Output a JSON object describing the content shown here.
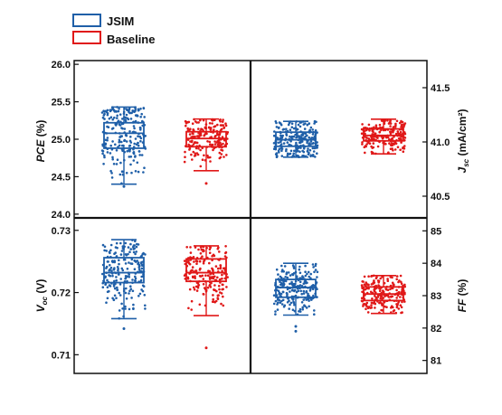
{
  "legend": [
    {
      "label": "JSIM",
      "color": "#1f5fa8"
    },
    {
      "label": "Baseline",
      "color": "#e01818"
    }
  ],
  "chart_data": [
    {
      "type": "box",
      "panel": "top-left",
      "ylabel_main": "PCE",
      "ylabel_sub": "",
      "ylabel_unit": " (%)",
      "ylim": [
        23.95,
        26.05
      ],
      "yticks": [
        {
          "value": 24.0,
          "label": "24.0"
        },
        {
          "value": 24.5,
          "label": "24.5"
        },
        {
          "value": 25.0,
          "label": "25.0"
        },
        {
          "value": 25.5,
          "label": "25.5"
        },
        {
          "value": 26.0,
          "label": "26.0"
        }
      ],
      "axis_side": "left",
      "series": [
        {
          "name": "JSIM",
          "min": 24.4,
          "q1": 24.88,
          "median": 25.08,
          "q3": 25.22,
          "max": 25.43,
          "n": 230,
          "outliers": [
            24.37
          ]
        },
        {
          "name": "Baseline",
          "min": 24.58,
          "q1": 24.9,
          "median": 25.01,
          "q3": 25.1,
          "max": 25.27,
          "n": 190,
          "outliers": [
            24.41
          ]
        }
      ]
    },
    {
      "type": "box",
      "panel": "top-right",
      "ylabel_main": "J",
      "ylabel_sub": "sc",
      "ylabel_unit": " (mA/cm²)",
      "ylim": [
        40.3,
        41.75
      ],
      "yticks": [
        {
          "value": 40.5,
          "label": "40.5"
        },
        {
          "value": 41.0,
          "label": "41.0"
        },
        {
          "value": 41.5,
          "label": "41.5"
        }
      ],
      "axis_side": "right",
      "series": [
        {
          "name": "JSIM",
          "min": 40.86,
          "q1": 40.96,
          "median": 41.02,
          "q3": 41.09,
          "max": 41.19,
          "n": 220,
          "outliers": []
        },
        {
          "name": "Baseline",
          "min": 40.89,
          "q1": 41.01,
          "median": 41.06,
          "q3": 41.12,
          "max": 41.21,
          "n": 200,
          "outliers": []
        }
      ]
    },
    {
      "type": "box",
      "panel": "bottom-left",
      "ylabel_main": "V",
      "ylabel_sub": "oc",
      "ylabel_unit": " (V)",
      "ylim": [
        0.707,
        0.732
      ],
      "yticks": [
        {
          "value": 0.71,
          "label": "0.71"
        },
        {
          "value": 0.72,
          "label": "0.72"
        },
        {
          "value": 0.73,
          "label": "0.73"
        }
      ],
      "axis_side": "left",
      "series": [
        {
          "name": "JSIM",
          "min": 0.7158,
          "q1": 0.7216,
          "median": 0.7232,
          "q3": 0.7256,
          "max": 0.7285,
          "n": 210,
          "outliers": [
            0.7142
          ]
        },
        {
          "name": "Baseline",
          "min": 0.7163,
          "q1": 0.7218,
          "median": 0.7232,
          "q3": 0.7254,
          "max": 0.7275,
          "n": 190,
          "outliers": [
            0.7111
          ]
        }
      ]
    },
    {
      "type": "box",
      "panel": "bottom-right",
      "ylabel_main": "FF",
      "ylabel_sub": "",
      "ylabel_unit": " (%)",
      "ylim": [
        80.6,
        85.4
      ],
      "yticks": [
        {
          "value": 81,
          "label": "81"
        },
        {
          "value": 82,
          "label": "82"
        },
        {
          "value": 83,
          "label": "83"
        },
        {
          "value": 84,
          "label": "84"
        },
        {
          "value": 85,
          "label": "85"
        }
      ],
      "axis_side": "right",
      "series": [
        {
          "name": "JSIM",
          "min": 82.4,
          "q1": 82.95,
          "median": 83.25,
          "q3": 83.5,
          "max": 84.0,
          "n": 220,
          "outliers": [
            81.9,
            82.05
          ]
        },
        {
          "name": "Baseline",
          "min": 82.45,
          "q1": 82.85,
          "median": 83.05,
          "q3": 83.27,
          "max": 83.62,
          "n": 200,
          "outliers": []
        }
      ]
    }
  ]
}
